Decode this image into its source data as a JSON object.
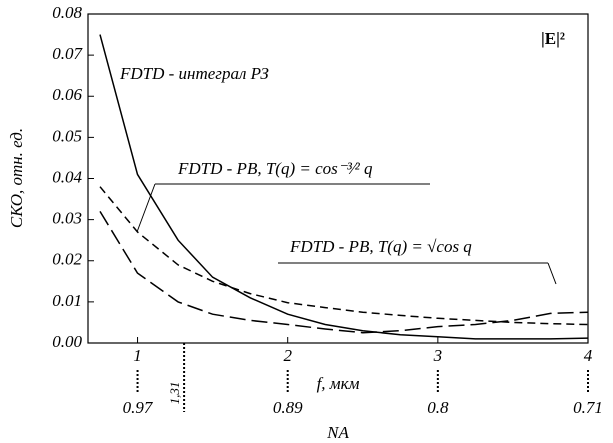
{
  "chart_data": {
    "type": "line",
    "y_label": "СКО, отн. ед.",
    "x_label": "f, мкм",
    "x2_label": "NA",
    "corner_label": "|E|²",
    "x": [
      0.75,
      1,
      1.27,
      1.5,
      1.75,
      2,
      2.25,
      2.5,
      2.75,
      3,
      3.25,
      3.5,
      3.75,
      4
    ],
    "series": [
      {
        "name": "FDTD - интеграл РЗ",
        "color": "#000000",
        "dash": "none",
        "values": [
          0.075,
          0.041,
          0.025,
          0.016,
          0.011,
          0.007,
          0.0045,
          0.003,
          0.002,
          0.0015,
          0.001,
          0.001,
          0.001,
          0.0012
        ]
      },
      {
        "name": "FDTD - PB,  T(q) = cos⁻³⁄² q",
        "color": "#000000",
        "dash": "8,5",
        "values": [
          0.038,
          0.027,
          0.019,
          0.015,
          0.012,
          0.0098,
          0.0086,
          0.0075,
          0.0067,
          0.006,
          0.0055,
          0.005,
          0.0047,
          0.0045
        ]
      },
      {
        "name": "FDTD - PB,  T(q) = √cos q",
        "color": "#000000",
        "dash": "16,6",
        "values": [
          0.032,
          0.017,
          0.01,
          0.007,
          0.0055,
          0.0045,
          0.0034,
          0.0025,
          0.003,
          0.004,
          0.0045,
          0.0055,
          0.0072,
          0.0075
        ]
      }
    ],
    "xlim": [
      0.67,
      4
    ],
    "xticks": [
      1,
      2,
      3,
      4
    ],
    "ylim": [
      0,
      0.08
    ],
    "yticks": [
      {
        "value": 0,
        "label": "0.00"
      },
      {
        "value": 0.01,
        "label": "0.01"
      },
      {
        "value": 0.02,
        "label": "0.02"
      },
      {
        "value": 0.03,
        "label": "0.03"
      },
      {
        "value": 0.04,
        "label": "0.04"
      },
      {
        "value": 0.05,
        "label": "0.05"
      },
      {
        "value": 0.06,
        "label": "0.06"
      },
      {
        "value": 0.07,
        "label": "0.07"
      },
      {
        "value": 0.08,
        "label": "0.08"
      }
    ],
    "x2ticks": [
      {
        "value": 1,
        "label": "0.97"
      },
      {
        "value": 1.31,
        "label": "1,31"
      },
      {
        "value": 2,
        "label": "0.89"
      },
      {
        "value": 3,
        "label": "0.8"
      },
      {
        "value": 4,
        "label": "0.71"
      }
    ]
  }
}
